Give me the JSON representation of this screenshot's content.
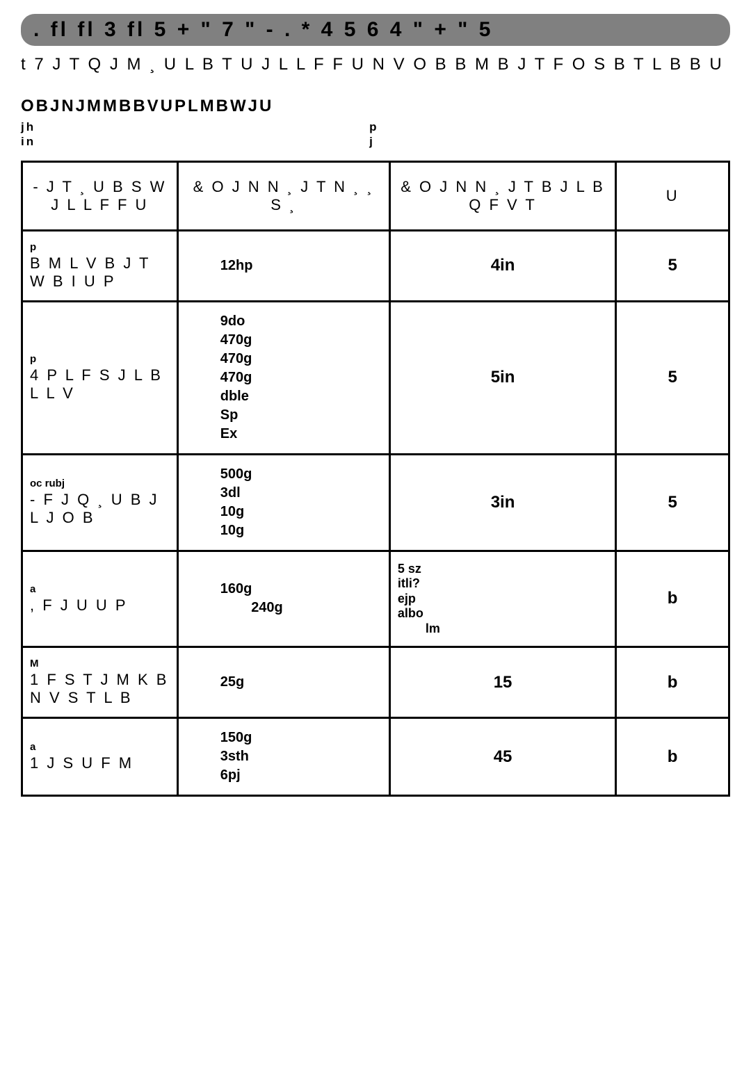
{
  "title": ". fl fl 3 fl 5  + \"  7 \" - . * 4 5 6 4 \" + \" 5",
  "intro_main": "t 7 J T Q J M ¸ U   L B T U J L L F F U   N V O B B M B J T F O   S B T L B B U",
  "intro_bold": "OBJNJMMBBVUPLMBWJU",
  "intro_left": [
    "jh",
    "in"
  ],
  "intro_right": [
    "p",
    "j"
  ],
  "columns": {
    "c1": "- J T ¸ U B S W J L L F F U",
    "c2": "& O J N N ¸ J T N ¸ ¸ S ¸",
    "c3": "& O J N N ¸ J T B J L B Q F V T",
    "c4": "U"
  },
  "rows": [
    {
      "dish_sub": "p",
      "dish": "B M L V B J T W B I U P",
      "raw": [
        "12hp"
      ],
      "valm": "4in",
      "units": "5"
    },
    {
      "dish_sub": "p",
      "dish": "4 P L F S J L B L L V",
      "raw": [
        "9do",
        "470g",
        "470g",
        "470g",
        "dble",
        "",
        "Sp",
        "Ex"
      ],
      "valm": "5in",
      "units": "5"
    },
    {
      "dish_sub": "oc  rubj",
      "dish": "- F J Q ¸ U B J L J O B",
      "raw": [
        "500g",
        "3dl",
        "10g",
        "10g"
      ],
      "valm": "3in",
      "units": "5"
    },
    {
      "dish_sub": "a",
      "dish": ", F J U U P",
      "raw": [
        "160g",
        "        240g"
      ],
      "valm_lines": [
        "5 sz",
        "itli?",
        "ejp",
        "albo",
        "        lm"
      ],
      "units": "b"
    },
    {
      "dish_sub": "M",
      "dish": "1 F S T J M K B N V S T L B",
      "raw": [
        "25g"
      ],
      "valm": "15",
      "units": "b"
    },
    {
      "dish_sub": "a",
      "dish": "1 J S U F M",
      "raw": [
        "150g",
        "3sth",
        "6pj"
      ],
      "valm": "45",
      "units": "b"
    }
  ]
}
